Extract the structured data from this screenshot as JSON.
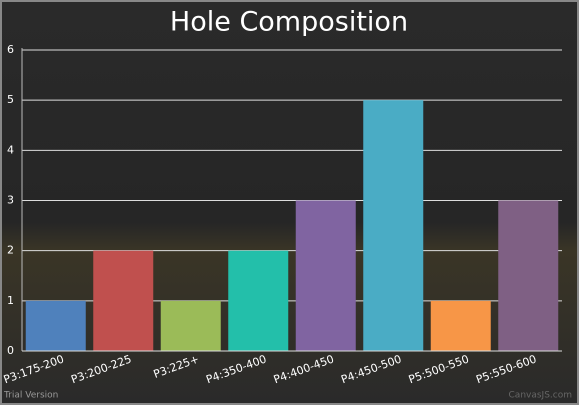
{
  "chart_data": {
    "type": "bar",
    "title": "Hole Composition",
    "categories": [
      "P3:175-200",
      "P3:200-225",
      "P3:225+",
      "P4:350-400",
      "P4:400-450",
      "P4:450-500",
      "P5:500-550",
      "P5:550-600"
    ],
    "values": [
      1,
      2,
      1,
      2,
      3,
      5,
      1,
      3
    ],
    "colors": [
      "#4f81bc",
      "#c0504e",
      "#9bbb58",
      "#23bfaa",
      "#8064a1",
      "#4aacc5",
      "#f79647",
      "#7f6084"
    ],
    "ylim": [
      0,
      6
    ],
    "yticks": [
      0,
      1,
      2,
      3,
      4,
      5,
      6
    ],
    "grid": true,
    "watermark": "Trial Version",
    "credit": "CanvasJS.com"
  }
}
